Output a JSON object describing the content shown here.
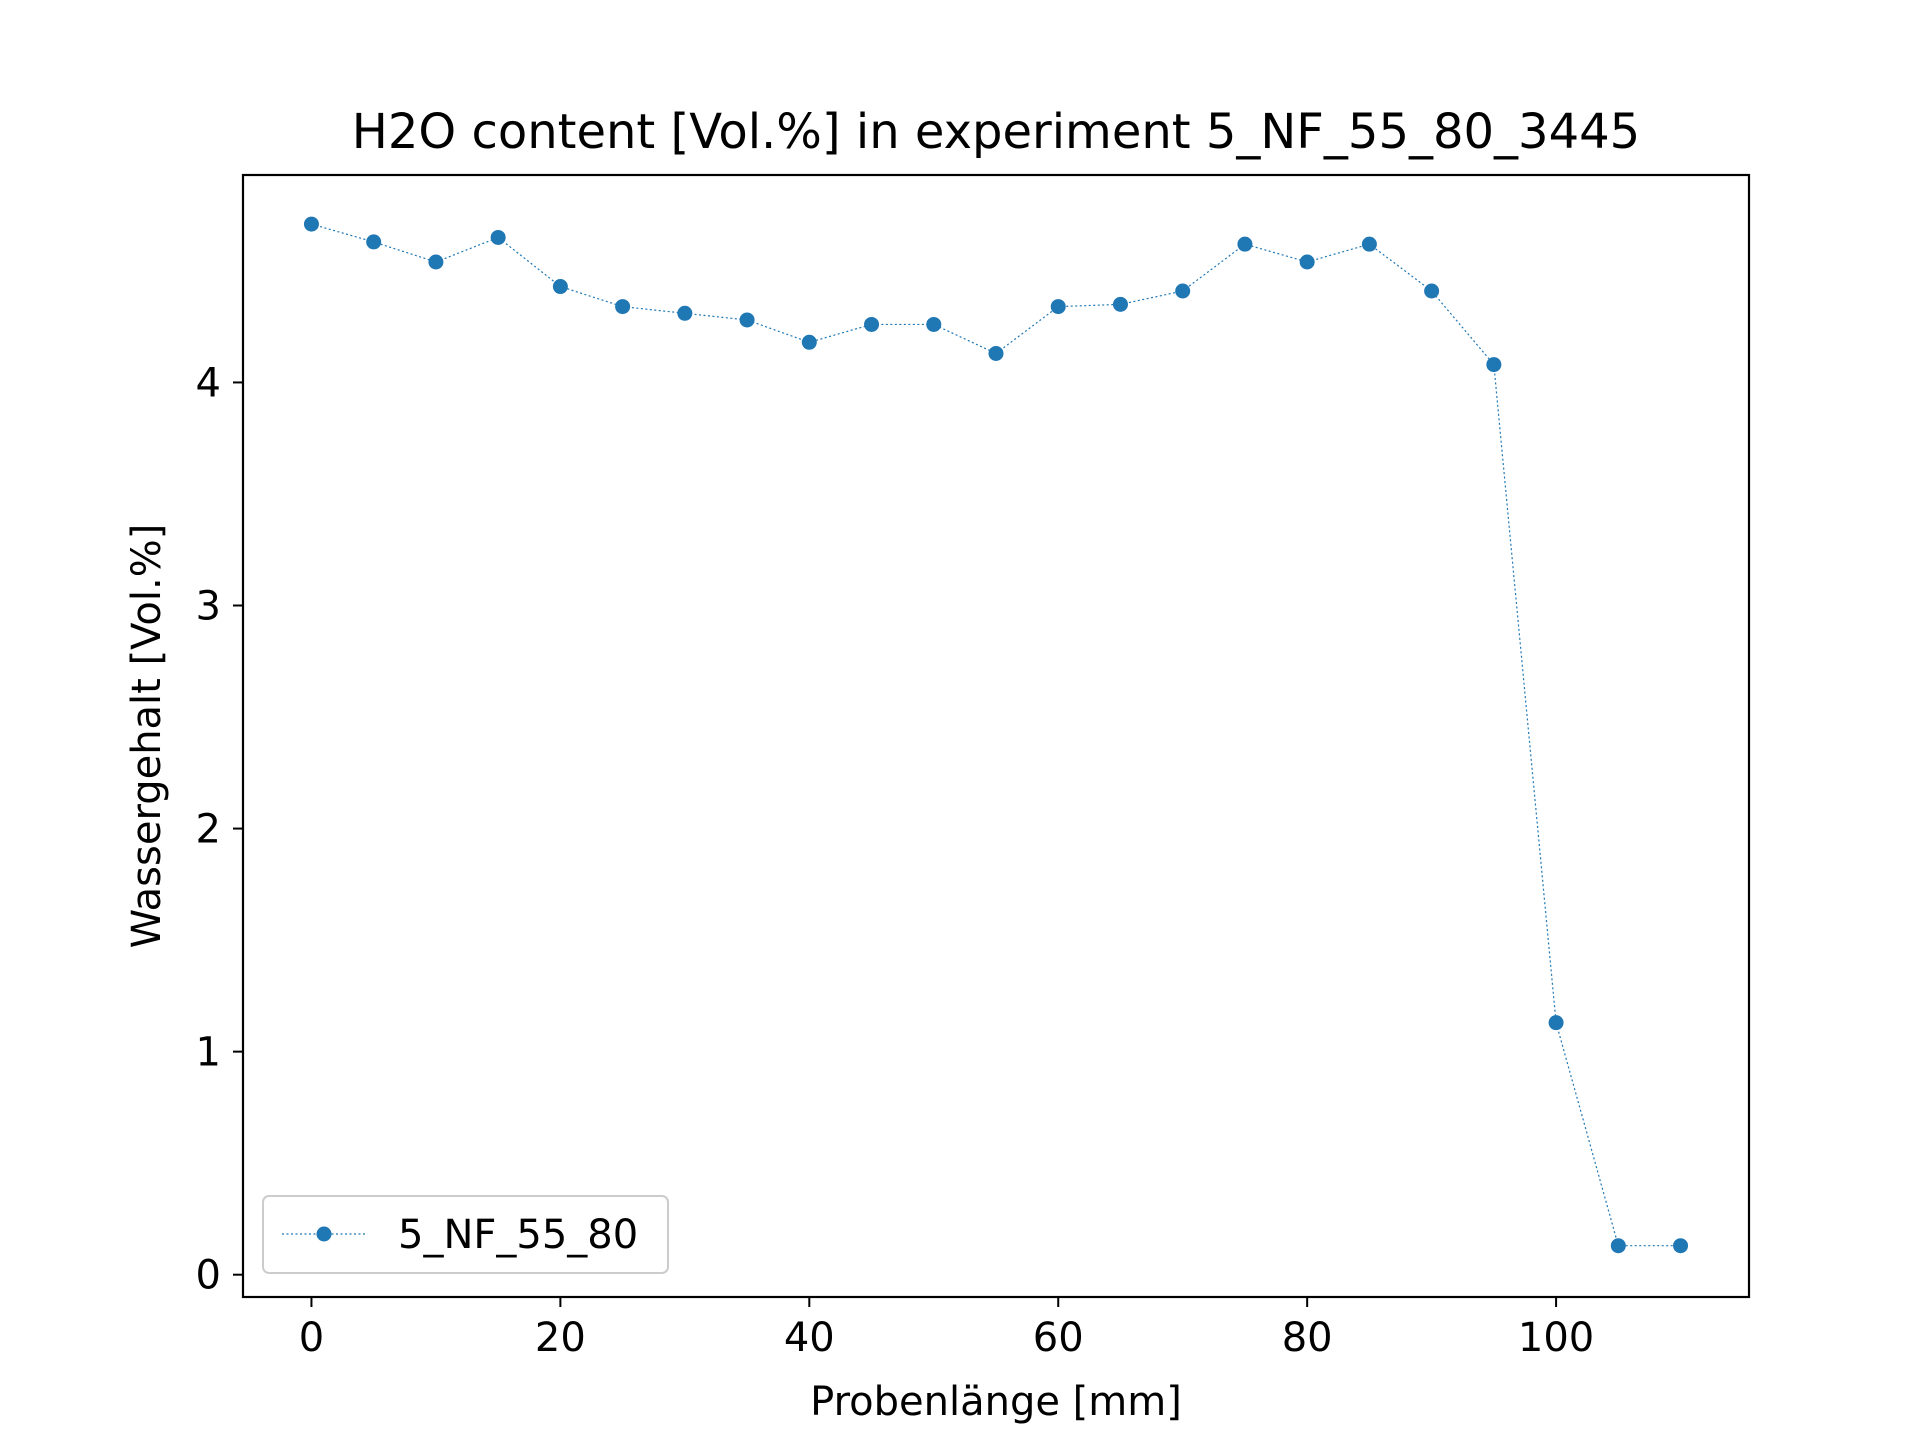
{
  "chart_data": {
    "type": "line",
    "title": "H2O content [Vol.%] in experiment 5_NF_55_80_3445",
    "xlabel": "Probenlänge [mm]",
    "ylabel": "Wassergehalt [Vol.%]",
    "xlim": [
      -5.5,
      115.5
    ],
    "ylim": [
      -0.1,
      4.93
    ],
    "x_ticks": [
      0,
      20,
      40,
      60,
      80,
      100
    ],
    "y_ticks": [
      0,
      1,
      2,
      3,
      4
    ],
    "grid": false,
    "legend_position": "lower-left",
    "series": [
      {
        "name": "5_NF_55_80",
        "color": "#1f77b4",
        "line_style": "dotted",
        "marker": "circle",
        "x": [
          0,
          5,
          10,
          15,
          20,
          25,
          30,
          35,
          40,
          45,
          50,
          55,
          60,
          65,
          70,
          75,
          80,
          85,
          90,
          95,
          100,
          105,
          110
        ],
        "y": [
          4.71,
          4.63,
          4.54,
          4.65,
          4.43,
          4.34,
          4.31,
          4.28,
          4.18,
          4.26,
          4.26,
          4.13,
          4.34,
          4.35,
          4.41,
          4.62,
          4.54,
          4.62,
          4.41,
          4.08,
          1.13,
          0.13,
          0.13
        ]
      }
    ]
  }
}
